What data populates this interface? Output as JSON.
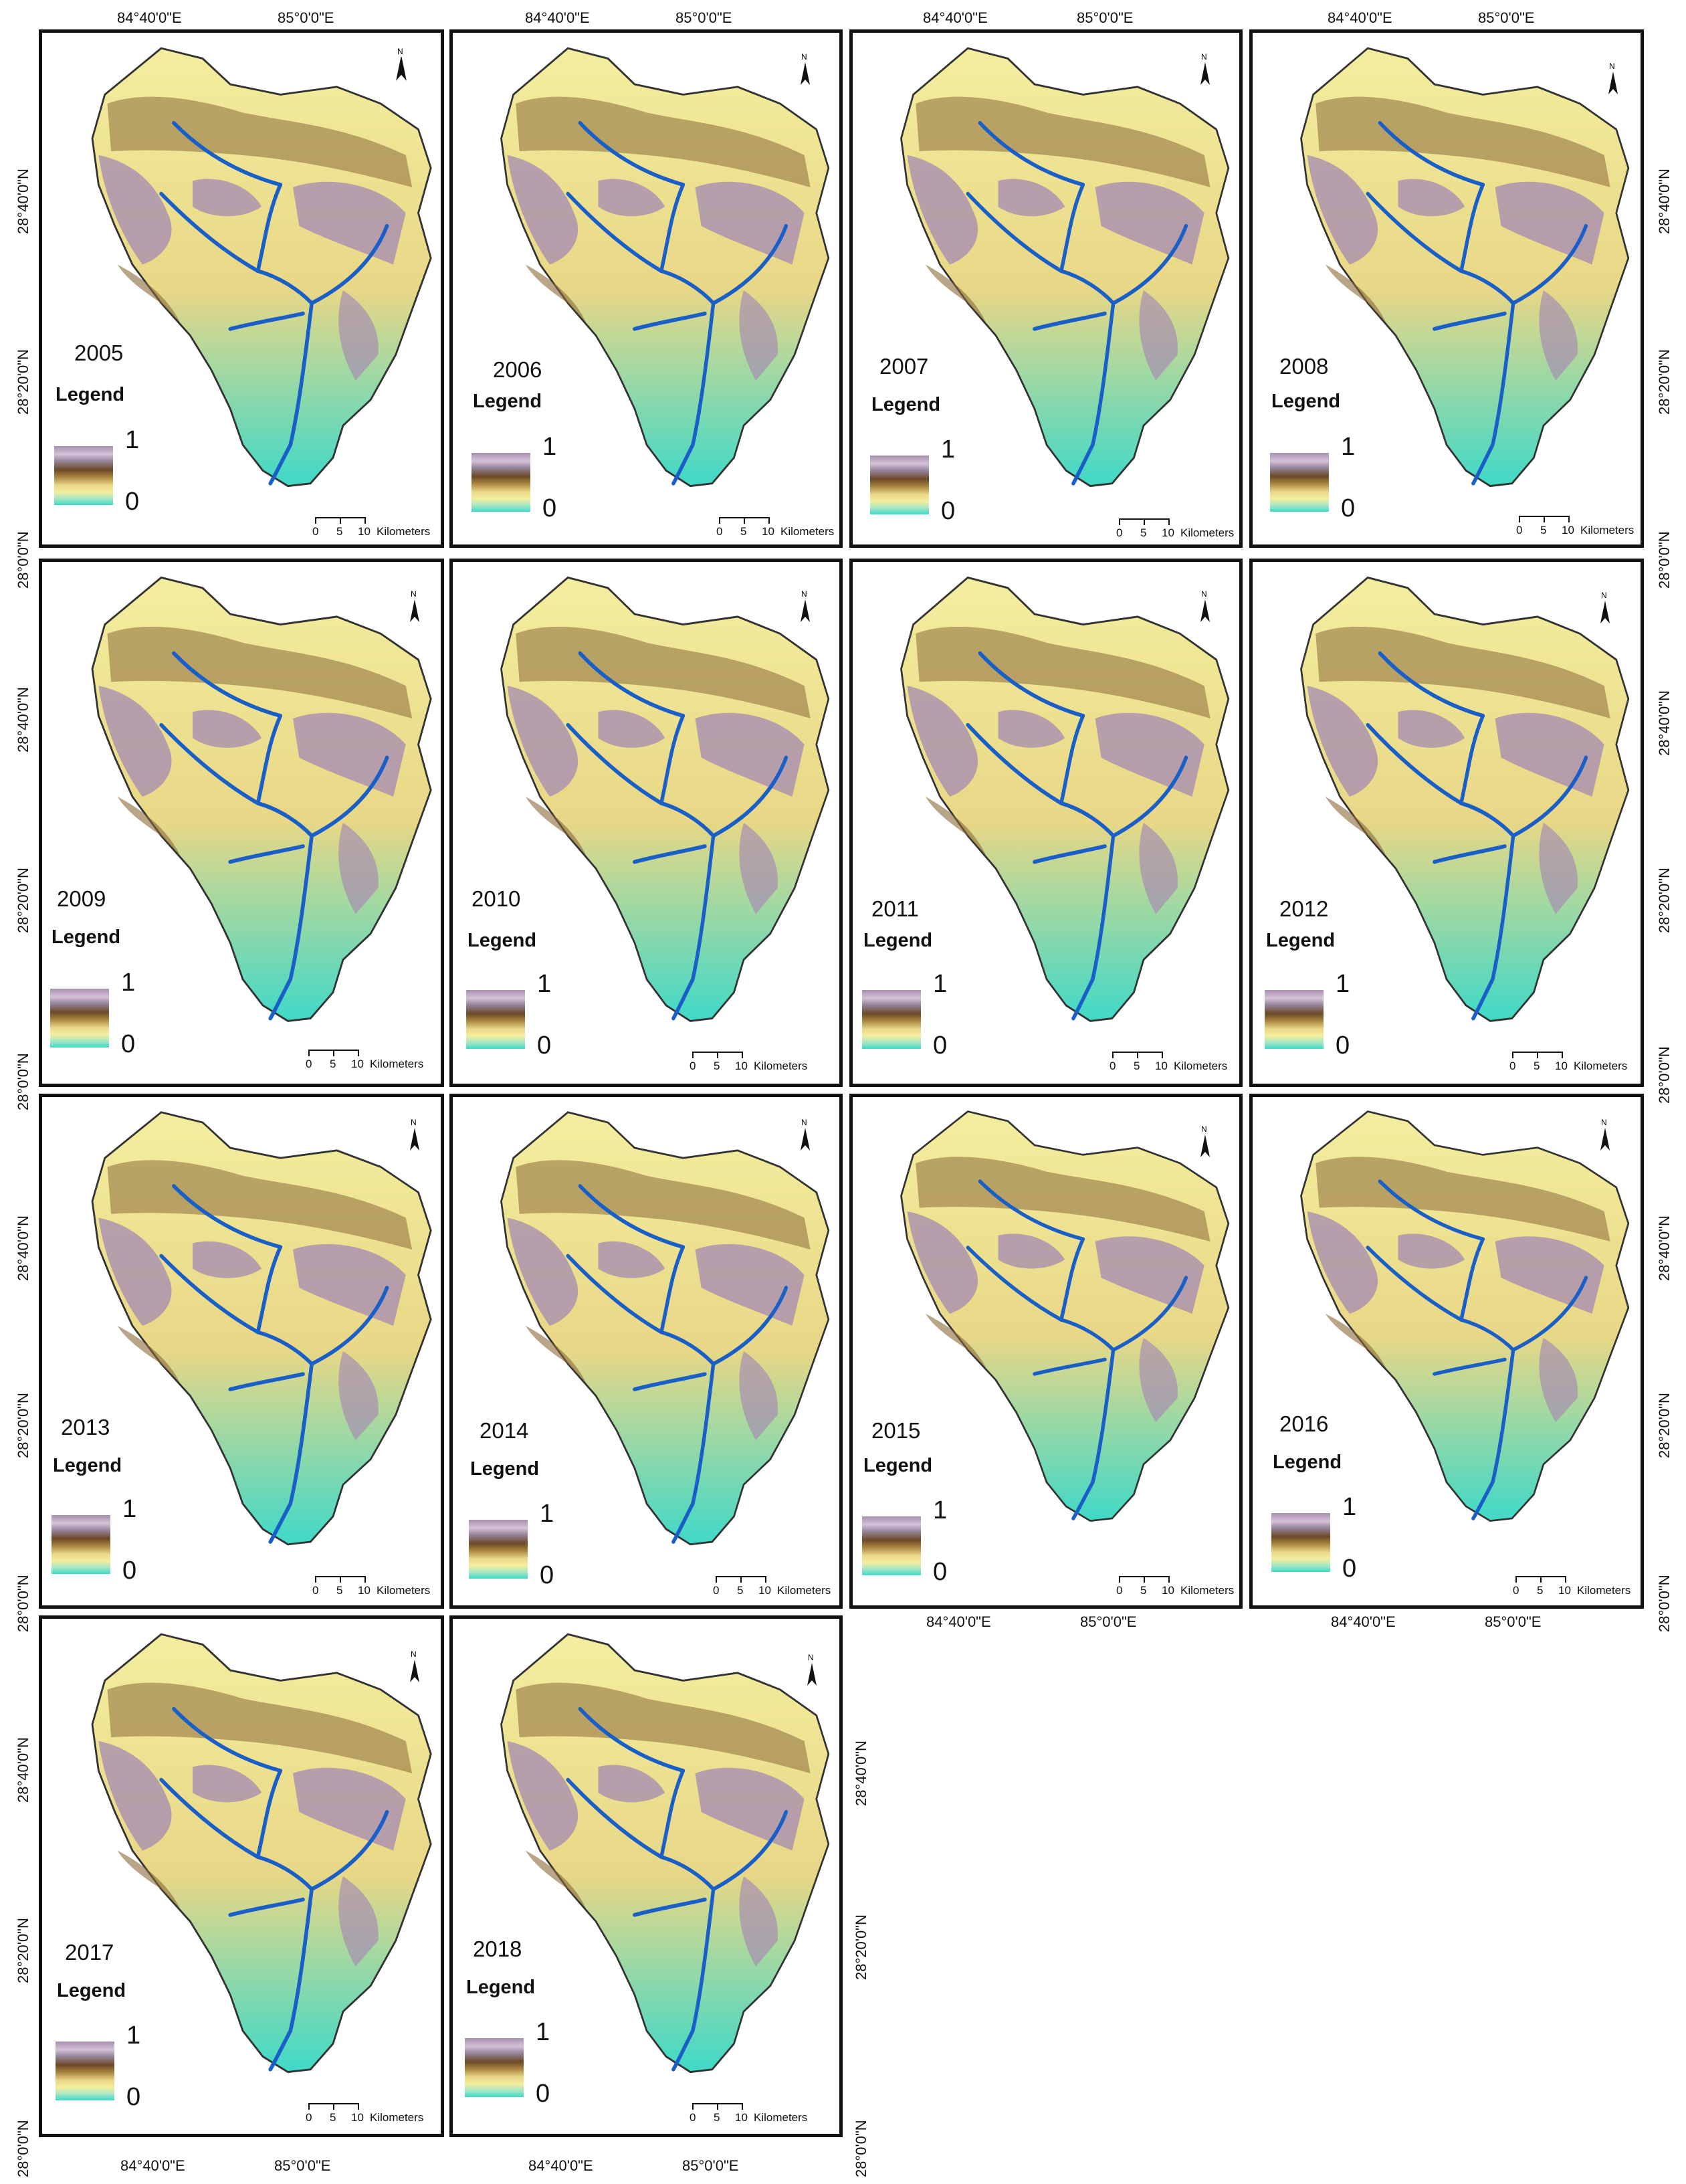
{
  "map": {
    "legend_title": "Legend",
    "legend_max": "1",
    "legend_min": "0",
    "scale": {
      "zero": "0",
      "five": "5",
      "ten": "10",
      "unit": "Kilometers"
    },
    "north": "N",
    "lon_labels": [
      "84°40'0\"E",
      "85°0'0\"E"
    ],
    "lat_labels": [
      "28°40'0\"N",
      "28°20'0\"N",
      "28°0'0\"N"
    ],
    "legend_colors": [
      "#a78fb0",
      "#d6c2d8",
      "#6b4a28",
      "#a8823e",
      "#e8d786",
      "#f3ee9e",
      "#3fd9c8"
    ],
    "river_color": "#1a5fc8"
  },
  "panels": [
    {
      "year": "2005"
    },
    {
      "year": "2006"
    },
    {
      "year": "2007"
    },
    {
      "year": "2008"
    },
    {
      "year": "2009"
    },
    {
      "year": "2010"
    },
    {
      "year": "2011"
    },
    {
      "year": "2012"
    },
    {
      "year": "2013"
    },
    {
      "year": "2014"
    },
    {
      "year": "2015"
    },
    {
      "year": "2016"
    },
    {
      "year": "2017"
    },
    {
      "year": "2018"
    }
  ]
}
